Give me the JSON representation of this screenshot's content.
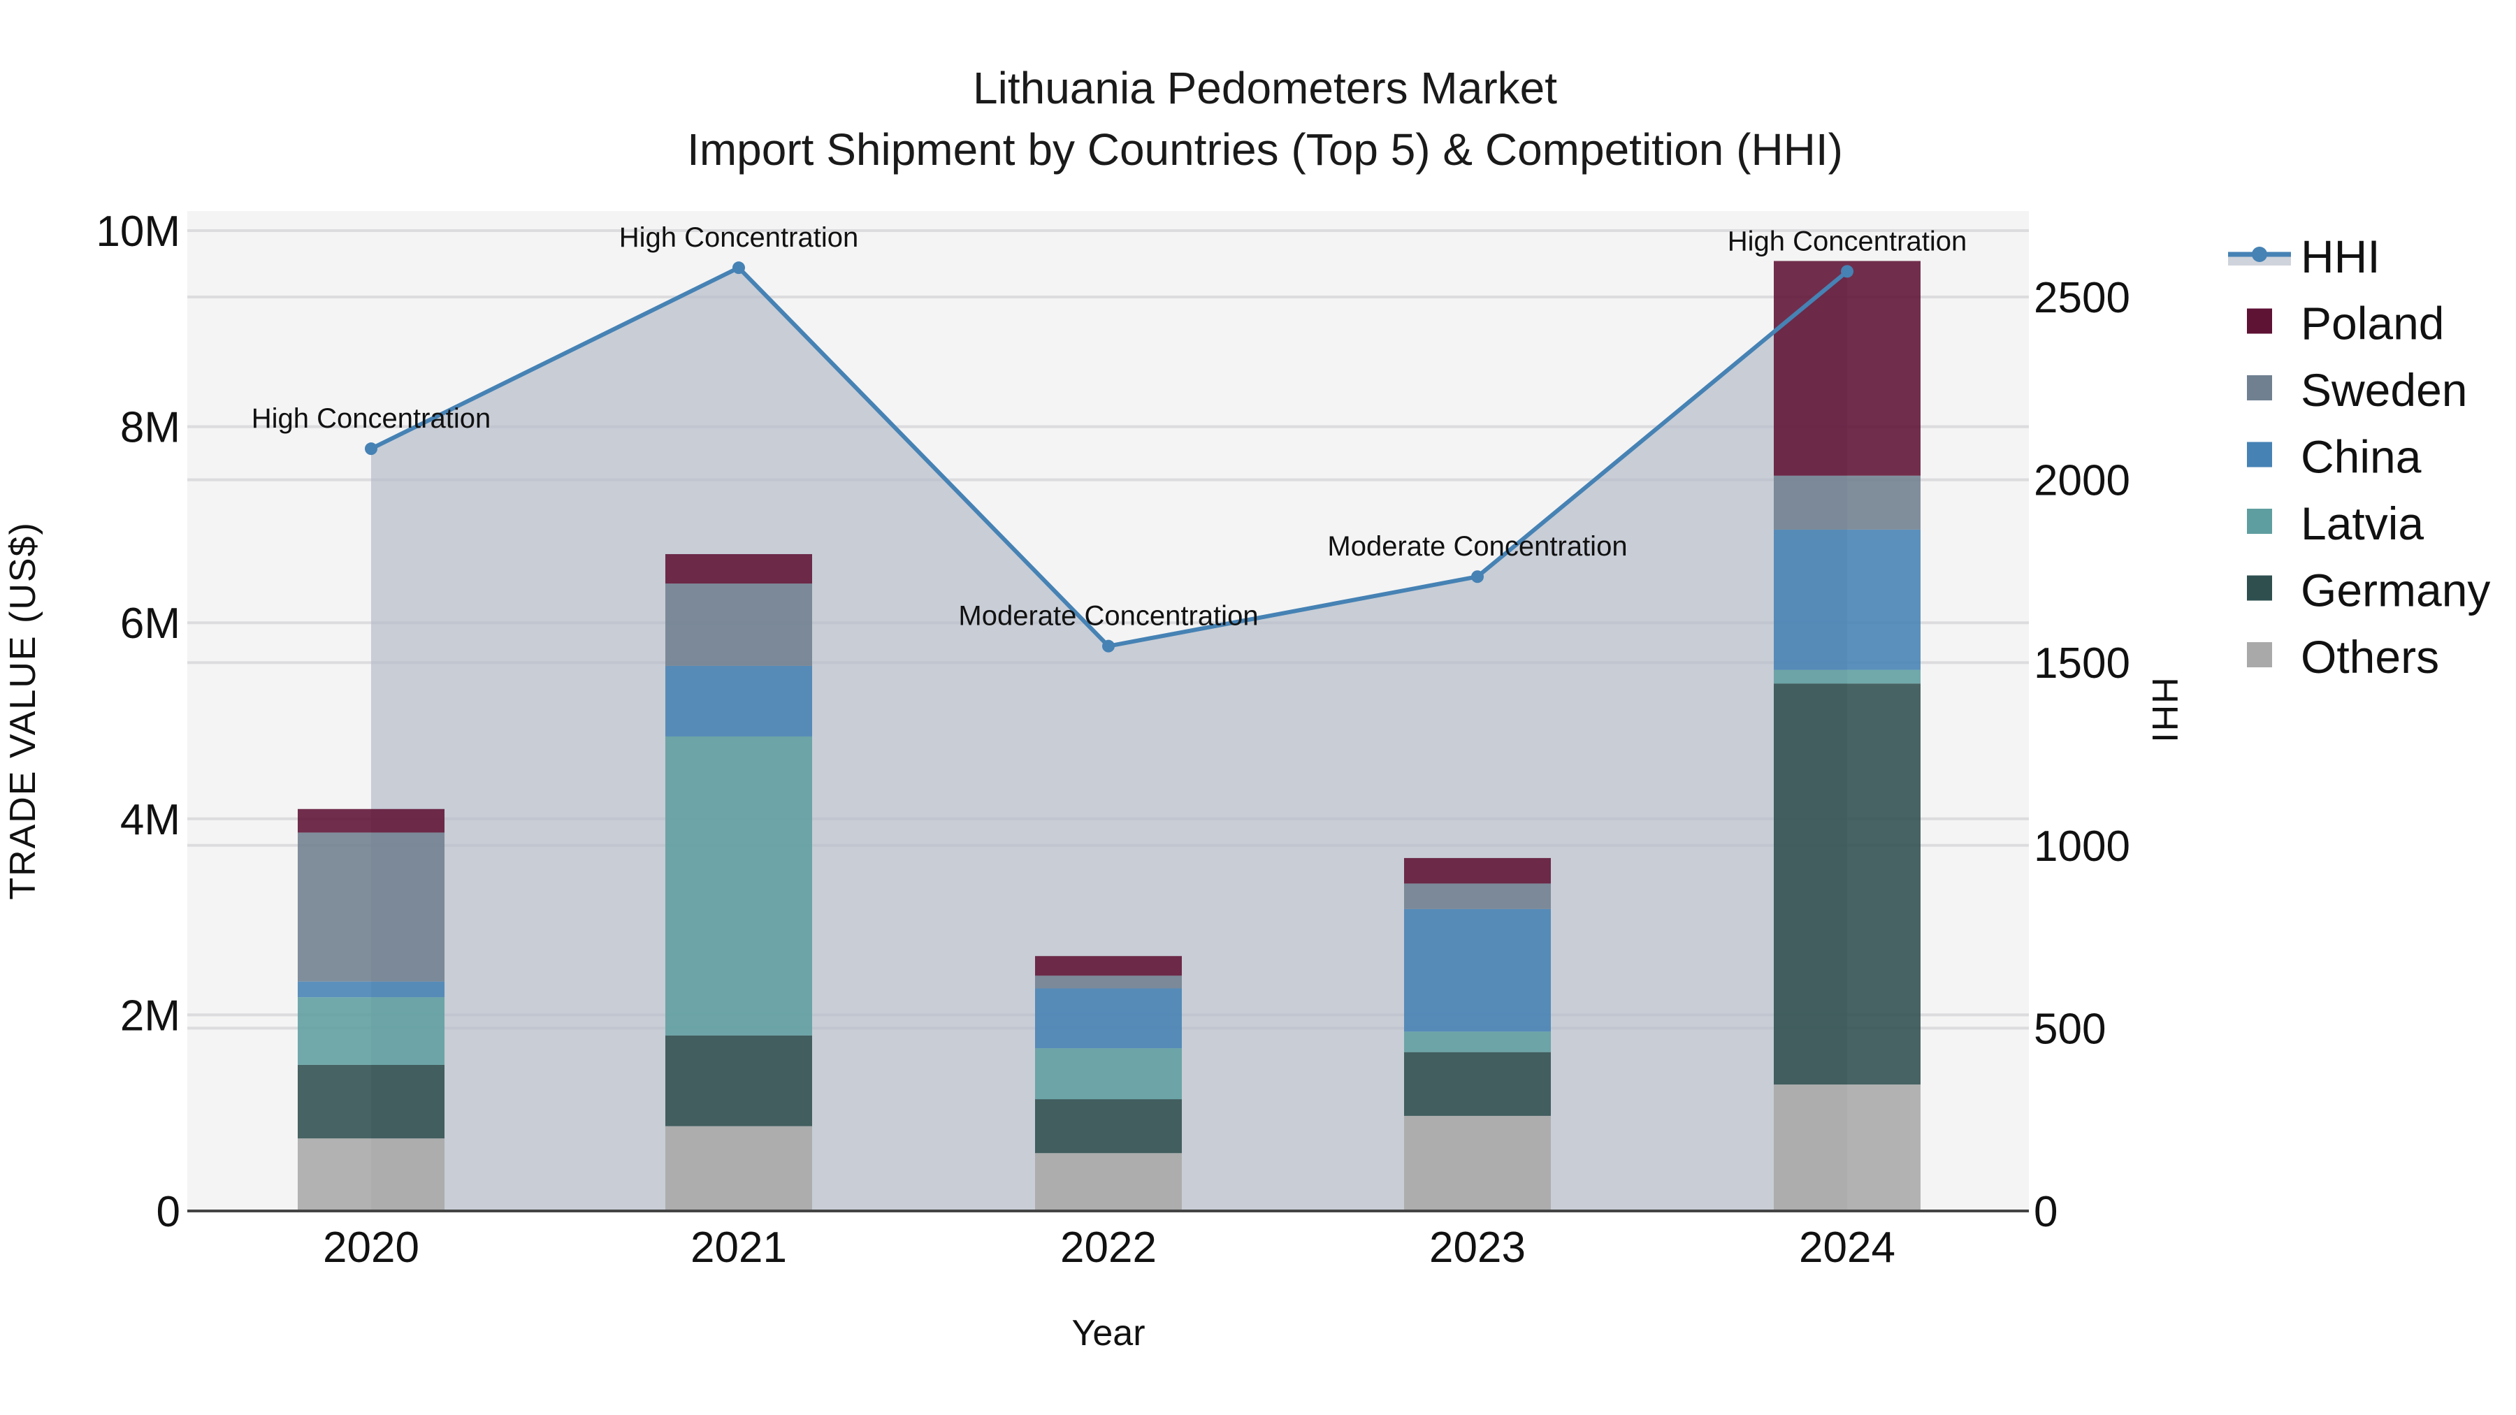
{
  "title": {
    "line1": "Lithuania Pedometers Market",
    "line2": "Import Shipment by Countries (Top 5) & Competition (HHI)"
  },
  "axes": {
    "x_title": "Year",
    "y_left_title": "TRADE VALUE (US$)",
    "y_right_title": "HHI",
    "y_left_ticks": [
      "0",
      "2M",
      "4M",
      "6M",
      "8M",
      "10M"
    ],
    "y_right_ticks": [
      "0",
      "500",
      "1000",
      "1500",
      "2000",
      "2500"
    ]
  },
  "legend": {
    "items": [
      {
        "label": "HHI",
        "type": "line",
        "color": "#4682b4"
      },
      {
        "label": "Poland",
        "type": "box",
        "color": "#5e1234"
      },
      {
        "label": "Sweden",
        "type": "box",
        "color": "#708090"
      },
      {
        "label": "China",
        "type": "box",
        "color": "#4682b4"
      },
      {
        "label": "Latvia",
        "type": "box",
        "color": "#5f9ea0"
      },
      {
        "label": "Germany",
        "type": "box",
        "color": "#2f4f4f"
      },
      {
        "label": "Others",
        "type": "box",
        "color": "#a9a9a9"
      }
    ]
  },
  "colors": {
    "plot_bg": "#f4f4f4",
    "grid": "#e2e2e2",
    "hhi_line": "#4682b4",
    "hhi_fill": "rgba(176,184,198,0.65)"
  },
  "chart_data": {
    "type": "bar",
    "stacked": true,
    "title": "Lithuania Pedometers Market — Import Shipment by Countries (Top 5) & Competition (HHI)",
    "xlabel": "Year",
    "ylabel": "TRADE VALUE (US$)",
    "y2label": "HHI",
    "ylim": [
      0,
      10200000
    ],
    "y2lim": [
      0,
      2720
    ],
    "grid": true,
    "legend_position": "right",
    "categories": [
      "2020",
      "2021",
      "2022",
      "2023",
      "2024"
    ],
    "series": [
      {
        "name": "Others",
        "color": "#a9a9a9",
        "values": [
          740000,
          865000,
          590000,
          970000,
          1290000
        ]
      },
      {
        "name": "Germany",
        "color": "#2f4f4f",
        "values": [
          750000,
          925000,
          550000,
          650000,
          4090000
        ]
      },
      {
        "name": "Latvia",
        "color": "#5f9ea0",
        "values": [
          690000,
          3050000,
          520000,
          210000,
          140000
        ]
      },
      {
        "name": "China",
        "color": "#4682b4",
        "values": [
          160000,
          720000,
          610000,
          1250000,
          1430000
        ]
      },
      {
        "name": "Sweden",
        "color": "#708090",
        "values": [
          1520000,
          840000,
          130000,
          260000,
          550000
        ]
      },
      {
        "name": "Poland",
        "color": "#5e1234",
        "values": [
          240000,
          300000,
          200000,
          260000,
          2190000
        ]
      }
    ],
    "line_series": {
      "name": "HHI",
      "axis": "right",
      "color": "#4682b4",
      "values": [
        2085,
        2580,
        1545,
        1735,
        2570
      ],
      "annotations": [
        "High Concentration",
        "High Concentration",
        "Moderate Concentration",
        "Moderate Concentration",
        "High Concentration"
      ]
    }
  }
}
